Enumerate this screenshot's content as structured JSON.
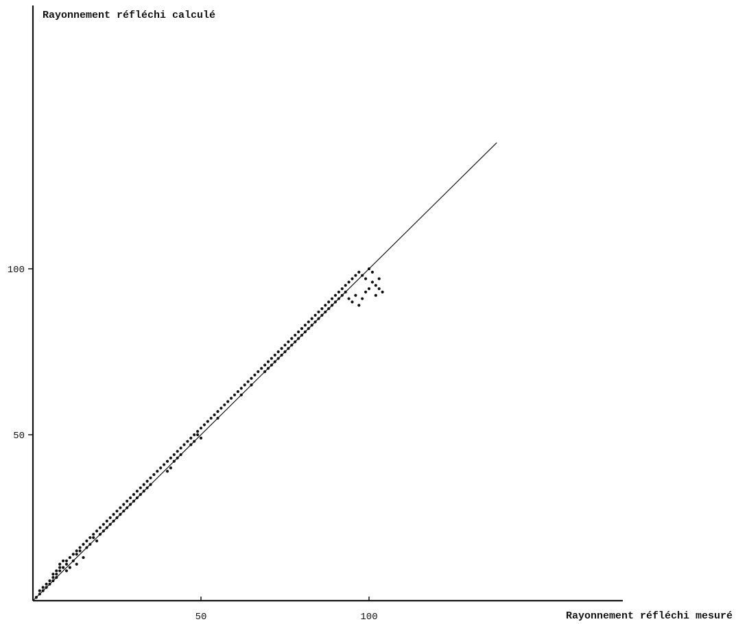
{
  "chart_data": {
    "type": "scatter",
    "title": "",
    "xlabel": "Rayonnement réfléchi mesuré",
    "ylabel": "Rayonnement réfléchi calculé",
    "xlim": [
      0,
      177
    ],
    "ylim": [
      0,
      177
    ],
    "xticks": [
      50,
      100
    ],
    "yticks": [
      50,
      100
    ],
    "grid": false,
    "reference_line": {
      "x": [
        0,
        138
      ],
      "y": [
        0,
        138
      ]
    },
    "x": [
      1,
      2,
      2,
      3,
      3,
      4,
      4,
      5,
      5,
      6,
      6,
      6,
      7,
      7,
      7,
      8,
      8,
      8,
      9,
      9,
      10,
      10,
      10,
      11,
      11,
      12,
      12,
      13,
      13,
      13,
      14,
      14,
      15,
      15,
      16,
      16,
      17,
      17,
      18,
      18,
      19,
      19,
      20,
      20,
      21,
      21,
      22,
      22,
      23,
      23,
      24,
      24,
      25,
      25,
      26,
      26,
      27,
      27,
      28,
      28,
      29,
      29,
      30,
      30,
      31,
      31,
      32,
      32,
      33,
      33,
      34,
      34,
      35,
      35,
      36,
      37,
      38,
      39,
      40,
      40,
      41,
      41,
      42,
      42,
      43,
      43,
      44,
      44,
      45,
      46,
      47,
      47,
      48,
      48,
      49,
      49,
      50,
      50,
      51,
      52,
      53,
      54,
      55,
      55,
      56,
      57,
      58,
      59,
      60,
      61,
      62,
      62,
      63,
      64,
      65,
      65,
      66,
      67,
      68,
      69,
      69,
      70,
      70,
      71,
      71,
      72,
      72,
      73,
      73,
      74,
      74,
      75,
      75,
      76,
      76,
      77,
      77,
      78,
      78,
      79,
      79,
      80,
      80,
      81,
      81,
      82,
      82,
      83,
      83,
      84,
      84,
      85,
      85,
      86,
      86,
      87,
      87,
      88,
      88,
      89,
      89,
      90,
      90,
      91,
      91,
      92,
      92,
      93,
      93,
      94,
      94,
      95,
      95,
      96,
      96,
      97,
      97,
      98,
      98,
      99,
      99,
      100,
      100,
      101,
      101,
      102,
      102,
      103,
      103,
      104
    ],
    "y": [
      1,
      2,
      3,
      3,
      4,
      4,
      5,
      5,
      6,
      6,
      7,
      8,
      8,
      9,
      7,
      9,
      10,
      11,
      10,
      12,
      11,
      9,
      12,
      13,
      10,
      14,
      12,
      15,
      14,
      11,
      16,
      15,
      17,
      13,
      18,
      16,
      19,
      17,
      20,
      19,
      21,
      18,
      22,
      20,
      23,
      21,
      24,
      22,
      25,
      23,
      26,
      24,
      27,
      25,
      28,
      26,
      29,
      27,
      30,
      28,
      31,
      29,
      32,
      30,
      33,
      31,
      34,
      32,
      35,
      33,
      36,
      34,
      37,
      35,
      38,
      39,
      40,
      41,
      42,
      39,
      43,
      40,
      44,
      42,
      45,
      43,
      46,
      44,
      47,
      48,
      49,
      47,
      50,
      48,
      51,
      50,
      52,
      49,
      53,
      54,
      55,
      56,
      57,
      55,
      58,
      59,
      60,
      61,
      62,
      63,
      64,
      62,
      65,
      66,
      67,
      65,
      68,
      69,
      70,
      71,
      69,
      72,
      70,
      73,
      71,
      74,
      72,
      75,
      73,
      76,
      74,
      77,
      75,
      78,
      76,
      79,
      77,
      80,
      78,
      81,
      79,
      82,
      80,
      83,
      81,
      84,
      82,
      85,
      83,
      86,
      84,
      87,
      85,
      88,
      86,
      89,
      87,
      90,
      88,
      91,
      89,
      92,
      90,
      93,
      91,
      94,
      92,
      95,
      93,
      96,
      91,
      97,
      90,
      98,
      92,
      99,
      89,
      98,
      91,
      97,
      93,
      100,
      94,
      99,
      96,
      95,
      92,
      97,
      94,
      93
    ]
  }
}
